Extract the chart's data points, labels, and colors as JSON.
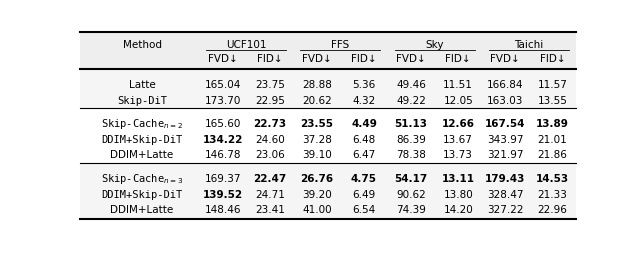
{
  "col_groups": [
    {
      "name": "UCF101"
    },
    {
      "name": "FFS"
    },
    {
      "name": "Sky"
    },
    {
      "name": "Taichi"
    }
  ],
  "sections": [
    {
      "rows": [
        {
          "method": "Latte",
          "monospace": false,
          "values": [
            "165.04",
            "23.75",
            "28.88",
            "5.36",
            "49.46",
            "11.51",
            "166.84",
            "11.57"
          ],
          "bold": [
            false,
            false,
            false,
            false,
            false,
            false,
            false,
            false
          ]
        },
        {
          "method": "Skip-DiT",
          "monospace": true,
          "values": [
            "173.70",
            "22.95",
            "20.62",
            "4.32",
            "49.22",
            "12.05",
            "163.03",
            "13.55"
          ],
          "bold": [
            false,
            false,
            false,
            false,
            false,
            false,
            false,
            false
          ]
        }
      ]
    },
    {
      "rows": [
        {
          "method": "Skip-Cache$_{n=2}$",
          "monospace": true,
          "values": [
            "165.60",
            "22.73",
            "23.55",
            "4.49",
            "51.13",
            "12.66",
            "167.54",
            "13.89"
          ],
          "bold": [
            false,
            true,
            true,
            true,
            true,
            true,
            true,
            true
          ]
        },
        {
          "method": "DDIM+Skip-DiT",
          "monospace": true,
          "values": [
            "134.22",
            "24.60",
            "37.28",
            "6.48",
            "86.39",
            "13.67",
            "343.97",
            "21.01"
          ],
          "bold": [
            true,
            false,
            false,
            false,
            false,
            false,
            false,
            false
          ]
        },
        {
          "method": "DDIM+Latte",
          "monospace": false,
          "values": [
            "146.78",
            "23.06",
            "39.10",
            "6.47",
            "78.38",
            "13.73",
            "321.97",
            "21.86"
          ],
          "bold": [
            false,
            false,
            false,
            false,
            false,
            false,
            false,
            false
          ]
        }
      ]
    },
    {
      "rows": [
        {
          "method": "Skip-Cache$_{n=3}$",
          "monospace": true,
          "values": [
            "169.37",
            "22.47",
            "26.76",
            "4.75",
            "54.17",
            "13.11",
            "179.43",
            "14.53"
          ],
          "bold": [
            false,
            true,
            true,
            true,
            true,
            true,
            true,
            true
          ]
        },
        {
          "method": "DDIM+Skip-DiT",
          "monospace": true,
          "values": [
            "139.52",
            "24.71",
            "39.20",
            "6.49",
            "90.62",
            "13.80",
            "328.47",
            "21.33"
          ],
          "bold": [
            true,
            false,
            false,
            false,
            false,
            false,
            false,
            false
          ]
        },
        {
          "method": "DDIM+Latte",
          "monospace": false,
          "values": [
            "148.46",
            "23.41",
            "41.00",
            "6.54",
            "74.39",
            "14.20",
            "327.22",
            "22.96"
          ],
          "bold": [
            false,
            false,
            false,
            false,
            false,
            false,
            false,
            false
          ]
        }
      ]
    }
  ]
}
